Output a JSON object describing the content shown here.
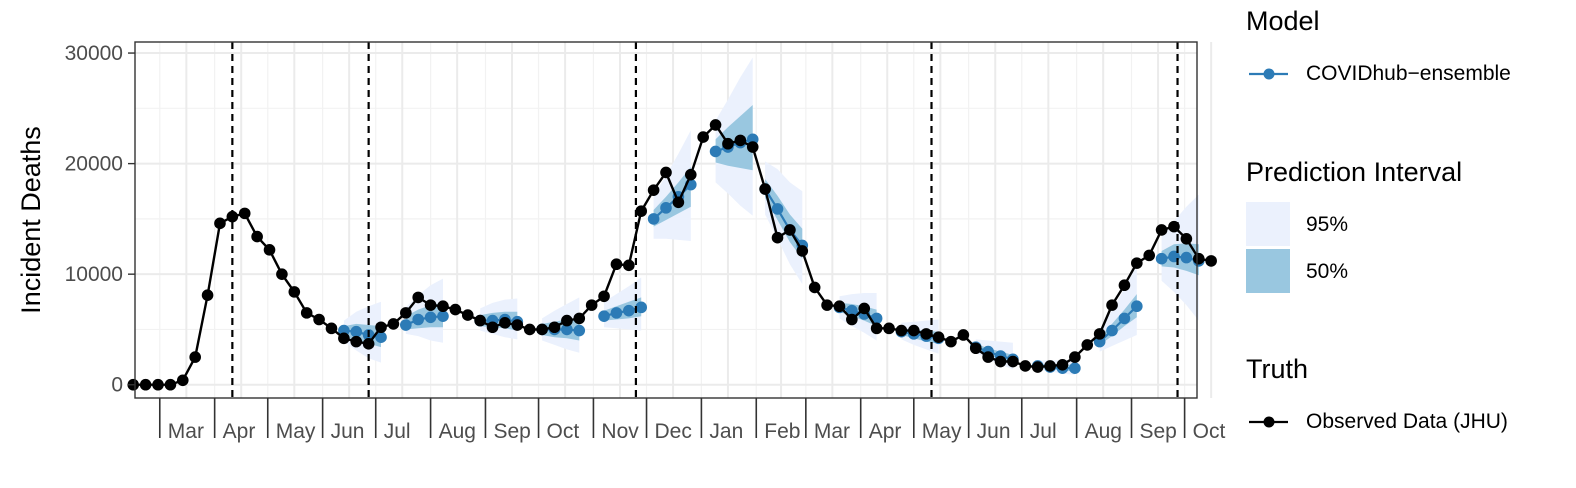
{
  "chart_data": {
    "type": "line",
    "ylabel": "Incident Deaths",
    "xlabel": "",
    "ylim": [
      -1200,
      31000
    ],
    "y_ticks": [
      0,
      10000,
      20000,
      30000
    ],
    "grid": true,
    "legend_position": "right",
    "x_month_labels": [
      "Mar",
      "Apr",
      "May",
      "Jun",
      "Jul",
      "Aug",
      "Sep",
      "Oct",
      "Nov",
      "Dec",
      "Jan",
      "Feb",
      "Mar",
      "Apr",
      "May",
      "Jun",
      "Jul",
      "Aug",
      "Sep",
      "Oct"
    ],
    "x_months": [
      "2020-03",
      "2020-04",
      "2020-05",
      "2020-06",
      "2020-07",
      "2020-08",
      "2020-09",
      "2020-10",
      "2020-11",
      "2020-12",
      "2021-01",
      "2021-02",
      "2021-03",
      "2021-04",
      "2021-05",
      "2021-06",
      "2021-07",
      "2021-08",
      "2021-09",
      "2021-10"
    ],
    "x_range": [
      "2020-02-16",
      "2021-10-08"
    ],
    "vlines": [
      "2020-04-11",
      "2020-06-27",
      "2020-11-25",
      "2021-05-11",
      "2021-09-27"
    ],
    "series": [
      {
        "name": "Observed Data (JHU)",
        "color": "#000000",
        "points": [
          [
            "2020-02-15",
            0
          ],
          [
            "2020-02-22",
            0
          ],
          [
            "2020-02-29",
            0
          ],
          [
            "2020-03-07",
            0
          ],
          [
            "2020-03-14",
            400
          ],
          [
            "2020-03-21",
            2500
          ],
          [
            "2020-03-28",
            8100
          ],
          [
            "2020-04-04",
            14600
          ],
          [
            "2020-04-11",
            15200
          ],
          [
            "2020-04-18",
            15500
          ],
          [
            "2020-04-25",
            13400
          ],
          [
            "2020-05-02",
            12200
          ],
          [
            "2020-05-09",
            10000
          ],
          [
            "2020-05-16",
            8400
          ],
          [
            "2020-05-23",
            6500
          ],
          [
            "2020-05-30",
            5900
          ],
          [
            "2020-06-06",
            5100
          ],
          [
            "2020-06-13",
            4200
          ],
          [
            "2020-06-20",
            3900
          ],
          [
            "2020-06-27",
            3700
          ],
          [
            "2020-07-04",
            5200
          ],
          [
            "2020-07-11",
            5500
          ],
          [
            "2020-07-18",
            6500
          ],
          [
            "2020-07-25",
            7900
          ],
          [
            "2020-08-01",
            7200
          ],
          [
            "2020-08-08",
            7100
          ],
          [
            "2020-08-15",
            6800
          ],
          [
            "2020-08-22",
            6300
          ],
          [
            "2020-08-29",
            5800
          ],
          [
            "2020-09-05",
            5200
          ],
          [
            "2020-09-12",
            5600
          ],
          [
            "2020-09-19",
            5400
          ],
          [
            "2020-09-26",
            5000
          ],
          [
            "2020-10-03",
            5000
          ],
          [
            "2020-10-10",
            5200
          ],
          [
            "2020-10-17",
            5800
          ],
          [
            "2020-10-24",
            6000
          ],
          [
            "2020-10-31",
            7200
          ],
          [
            "2020-11-07",
            8000
          ],
          [
            "2020-11-14",
            10900
          ],
          [
            "2020-11-21",
            10800
          ],
          [
            "2020-11-28",
            15700
          ],
          [
            "2020-12-05",
            17600
          ],
          [
            "2020-12-12",
            19200
          ],
          [
            "2020-12-19",
            16500
          ],
          [
            "2020-12-26",
            19000
          ],
          [
            "2021-01-02",
            22400
          ],
          [
            "2021-01-09",
            23500
          ],
          [
            "2021-01-16",
            21800
          ],
          [
            "2021-01-23",
            22100
          ],
          [
            "2021-01-30",
            21500
          ],
          [
            "2021-02-06",
            17700
          ],
          [
            "2021-02-13",
            13300
          ],
          [
            "2021-02-20",
            14000
          ],
          [
            "2021-02-27",
            12100
          ],
          [
            "2021-03-06",
            8800
          ],
          [
            "2021-03-13",
            7200
          ],
          [
            "2021-03-20",
            7100
          ],
          [
            "2021-03-27",
            5900
          ],
          [
            "2021-04-03",
            6900
          ],
          [
            "2021-04-10",
            5100
          ],
          [
            "2021-04-17",
            5100
          ],
          [
            "2021-04-24",
            4900
          ],
          [
            "2021-05-01",
            4900
          ],
          [
            "2021-05-08",
            4600
          ],
          [
            "2021-05-15",
            4300
          ],
          [
            "2021-05-22",
            3900
          ],
          [
            "2021-05-29",
            4500
          ],
          [
            "2021-06-05",
            3300
          ],
          [
            "2021-06-12",
            2500
          ],
          [
            "2021-06-19",
            2100
          ],
          [
            "2021-06-26",
            2100
          ],
          [
            "2021-07-03",
            1700
          ],
          [
            "2021-07-10",
            1600
          ],
          [
            "2021-07-17",
            1700
          ],
          [
            "2021-07-24",
            1800
          ],
          [
            "2021-07-31",
            2500
          ],
          [
            "2021-08-07",
            3600
          ],
          [
            "2021-08-14",
            4600
          ],
          [
            "2021-08-21",
            7200
          ],
          [
            "2021-08-28",
            9000
          ],
          [
            "2021-09-04",
            11000
          ],
          [
            "2021-09-11",
            11700
          ],
          [
            "2021-09-18",
            14000
          ],
          [
            "2021-09-25",
            14300
          ],
          [
            "2021-10-02",
            13200
          ],
          [
            "2021-10-09",
            11400
          ],
          [
            "2021-10-16",
            11200
          ]
        ]
      }
    ],
    "forecasts": {
      "name": "COVIDhub-ensemble",
      "color": "#2c7bb6",
      "interval_95_color": "#ebf1fd",
      "interval_50_color": "#99c7e0",
      "groups": [
        {
          "date": [
            "2020-06-13",
            "2020-06-20",
            "2020-06-27",
            "2020-07-04"
          ],
          "median": [
            4900,
            4800,
            4500,
            4300
          ],
          "lo50": [
            4400,
            4000,
            3700,
            3400
          ],
          "hi50": [
            5300,
            5500,
            5400,
            5300
          ],
          "lo95": [
            3900,
            3100,
            2400,
            2000
          ],
          "hi95": [
            5800,
            6600,
            7100,
            7500
          ]
        },
        {
          "date": [
            "2020-07-18",
            "2020-07-25",
            "2020-08-01",
            "2020-08-08"
          ],
          "median": [
            5400,
            5900,
            6100,
            6200
          ],
          "lo50": [
            5000,
            5100,
            5200,
            5200
          ],
          "hi50": [
            6200,
            6800,
            7200,
            7400
          ],
          "lo95": [
            4600,
            4400,
            4000,
            3800
          ],
          "hi95": [
            7000,
            8100,
            9000,
            9600
          ]
        },
        {
          "date": [
            "2020-08-29",
            "2020-09-05",
            "2020-09-12",
            "2020-09-19"
          ],
          "median": [
            5800,
            5800,
            5900,
            5700
          ],
          "lo50": [
            5300,
            5200,
            5100,
            4900
          ],
          "hi50": [
            6300,
            6500,
            6600,
            6600
          ],
          "lo95": [
            4900,
            4600,
            4300,
            4100
          ],
          "hi95": [
            6900,
            7400,
            7700,
            7800
          ]
        },
        {
          "date": [
            "2020-10-03",
            "2020-10-10",
            "2020-10-17",
            "2020-10-24"
          ],
          "median": [
            5000,
            5000,
            5000,
            4900
          ],
          "lo50": [
            4500,
            4300,
            4200,
            4000
          ],
          "hi50": [
            5500,
            5700,
            5900,
            6000
          ],
          "lo95": [
            4000,
            3600,
            3200,
            2900
          ],
          "hi95": [
            6000,
            6700,
            7300,
            7900
          ]
        },
        {
          "date": [
            "2020-11-07",
            "2020-11-14",
            "2020-11-21",
            "2020-11-28"
          ],
          "median": [
            6200,
            6500,
            6700,
            7000
          ],
          "lo50": [
            5800,
            5900,
            6000,
            6200
          ],
          "hi50": [
            6700,
            7100,
            7500,
            7900
          ],
          "lo95": [
            5200,
            5100,
            5000,
            4900
          ],
          "hi95": [
            7500,
            8200,
            8900,
            9700
          ]
        },
        {
          "date": [
            "2020-12-05",
            "2020-12-12",
            "2020-12-19",
            "2020-12-26"
          ],
          "median": [
            15000,
            16000,
            17000,
            18100
          ],
          "lo50": [
            14300,
            14900,
            15500,
            16100
          ],
          "hi50": [
            15800,
            17000,
            18300,
            19700
          ],
          "lo95": [
            13200,
            13200,
            13100,
            13000
          ],
          "hi95": [
            17100,
            18900,
            20900,
            23000
          ]
        },
        {
          "date": [
            "2021-01-09",
            "2021-01-16",
            "2021-01-23",
            "2021-01-30"
          ],
          "median": [
            21100,
            21500,
            21900,
            22200
          ],
          "lo50": [
            20100,
            19800,
            19600,
            19400
          ],
          "hi50": [
            22200,
            23300,
            24300,
            25300
          ],
          "lo95": [
            18300,
            17300,
            16200,
            15300
          ],
          "hi95": [
            23900,
            25800,
            27800,
            29600
          ]
        },
        {
          "date": [
            "2021-02-06",
            "2021-02-13",
            "2021-02-20",
            "2021-02-27"
          ],
          "median": [
            17700,
            15900,
            14000,
            12600
          ],
          "lo50": [
            16900,
            14900,
            12900,
            11400
          ],
          "hi50": [
            18600,
            17100,
            15400,
            14100
          ],
          "lo95": [
            15400,
            13200,
            10900,
            9100
          ],
          "hi95": [
            20200,
            19500,
            18300,
            17500
          ]
        },
        {
          "date": [
            "2021-03-20",
            "2021-03-27",
            "2021-04-03",
            "2021-04-10"
          ],
          "median": [
            7000,
            6700,
            6400,
            6000
          ],
          "lo50": [
            6600,
            6200,
            5800,
            5300
          ],
          "hi50": [
            7400,
            7300,
            7100,
            6800
          ],
          "lo95": [
            6000,
            5300,
            4700,
            4000
          ],
          "hi95": [
            8000,
            8200,
            8300,
            8300
          ]
        },
        {
          "date": [
            "2021-04-24",
            "2021-05-01",
            "2021-05-08",
            "2021-05-15"
          ],
          "median": [
            4800,
            4600,
            4400,
            4200
          ],
          "lo50": [
            4500,
            4200,
            3900,
            3700
          ],
          "hi50": [
            5100,
            5000,
            4900,
            4800
          ],
          "lo95": [
            4100,
            3600,
            3200,
            2800
          ],
          "hi95": [
            5600,
            5700,
            5800,
            5900
          ]
        },
        {
          "date": [
            "2021-06-05",
            "2021-06-12",
            "2021-06-19",
            "2021-06-26"
          ],
          "median": [
            3400,
            3000,
            2600,
            2300
          ],
          "lo50": [
            3200,
            2700,
            2300,
            1900
          ],
          "hi50": [
            3700,
            3300,
            3000,
            2700
          ],
          "lo95": [
            2900,
            2300,
            1800,
            1400
          ],
          "hi95": [
            4100,
            4000,
            3900,
            3800
          ]
        },
        {
          "date": [
            "2021-07-10",
            "2021-07-17",
            "2021-07-24",
            "2021-07-31"
          ],
          "median": [
            1700,
            1600,
            1500,
            1500
          ],
          "lo50": [
            1600,
            1400,
            1300,
            1200
          ],
          "hi50": [
            1900,
            1800,
            1800,
            1800
          ],
          "lo95": [
            1400,
            1200,
            1000,
            900
          ],
          "hi95": [
            2200,
            2200,
            2200,
            2300
          ]
        },
        {
          "date": [
            "2021-08-14",
            "2021-08-21",
            "2021-08-28",
            "2021-09-04"
          ],
          "median": [
            3900,
            4900,
            6000,
            7100
          ],
          "lo50": [
            3600,
            4400,
            5300,
            6100
          ],
          "hi50": [
            4300,
            5500,
            6800,
            8200
          ],
          "lo95": [
            3000,
            3500,
            4000,
            4500
          ],
          "hi95": [
            5000,
            6700,
            8700,
            10800
          ]
        },
        {
          "date": [
            "2021-09-18",
            "2021-09-25",
            "2021-10-02",
            "2021-10-09"
          ],
          "median": [
            11400,
            11600,
            11500,
            11200
          ],
          "lo50": [
            10700,
            10600,
            10300,
            9900
          ],
          "hi50": [
            12100,
            12700,
            12800,
            12700
          ],
          "lo95": [
            9400,
            8400,
            7200,
            5800
          ],
          "hi95": [
            13400,
            14800,
            16100,
            17200
          ]
        }
      ]
    }
  },
  "legend": {
    "model_title": "Model",
    "model_label": "COVIDhub−ensemble",
    "interval_title": "Prediction Interval",
    "interval_95_label": "95%",
    "interval_50_label": "50%",
    "truth_title": "Truth",
    "truth_label": "Observed Data (JHU)"
  }
}
